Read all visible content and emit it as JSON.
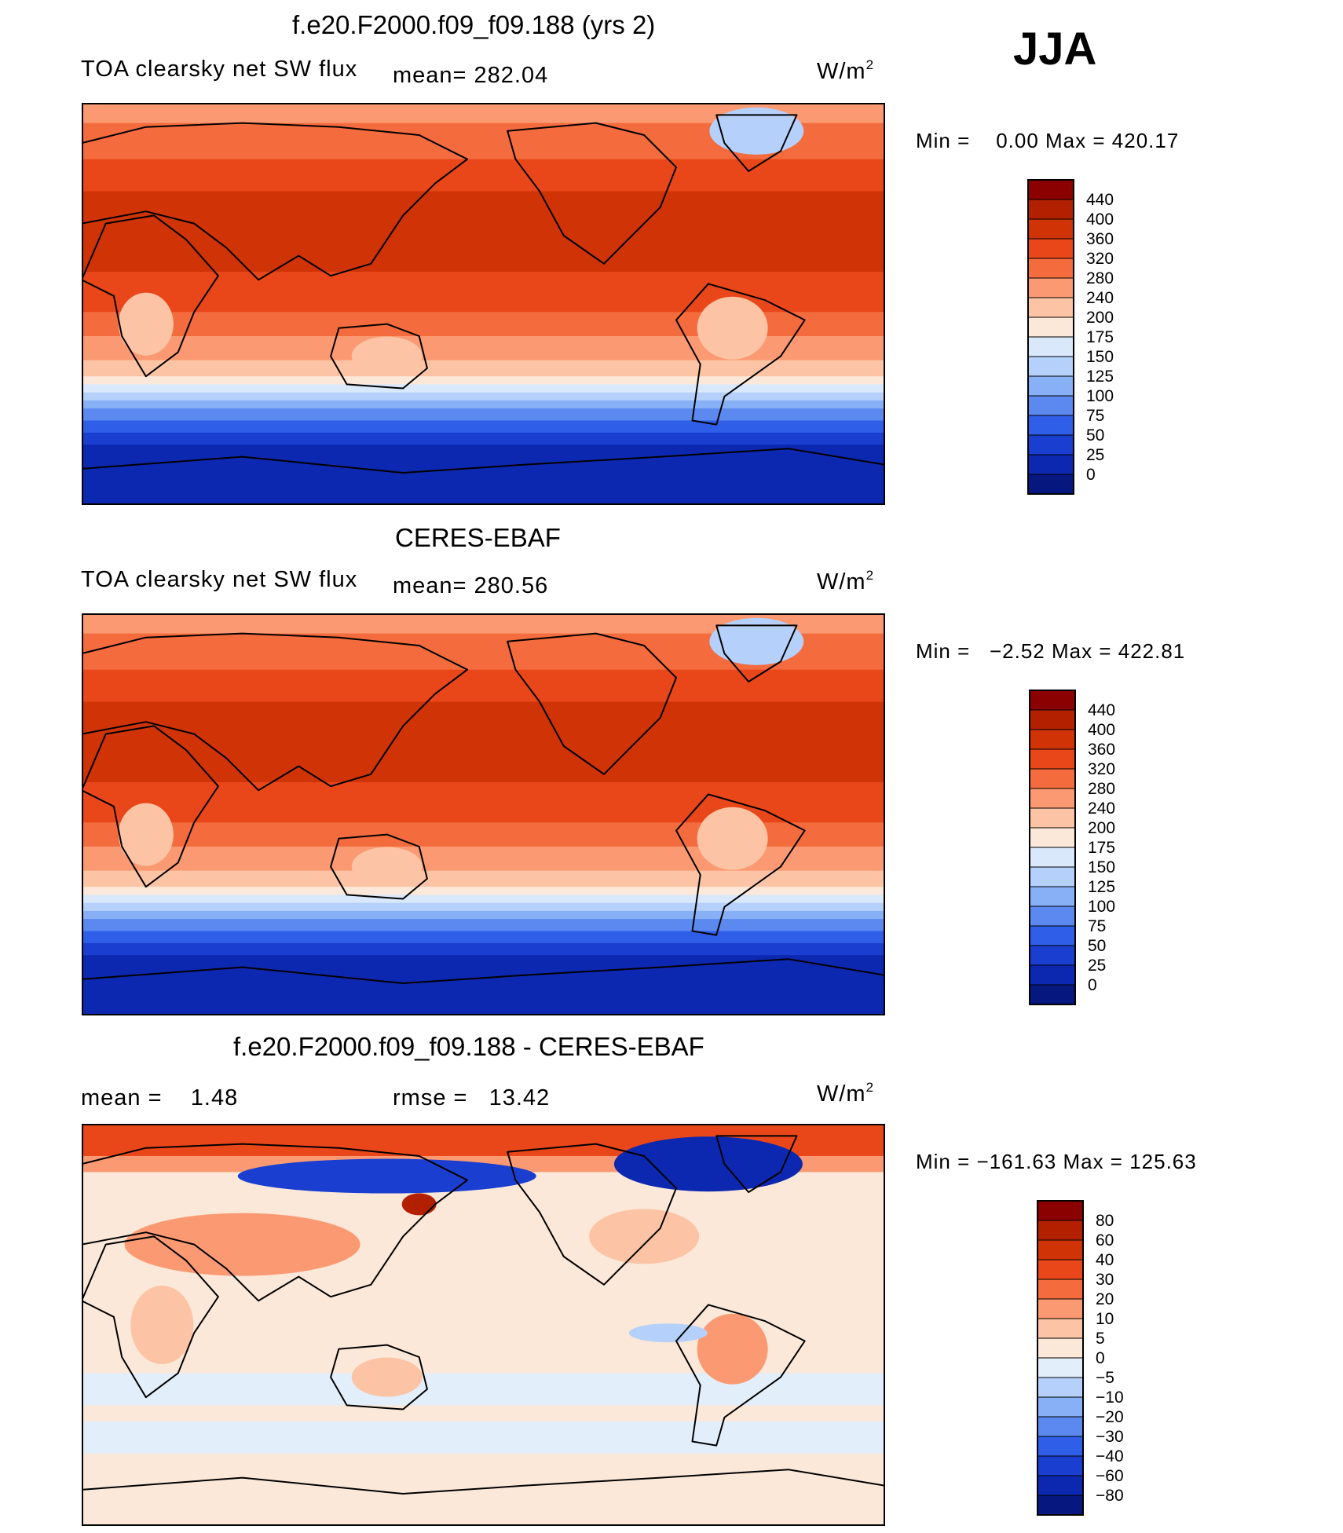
{
  "season": "JJA",
  "panels": [
    {
      "title": "f.e20.F2000.f09_f09.188 (yrs 2)",
      "left_label": "TOA clearsky net SW flux",
      "mean_text": "mean= 282.04",
      "unit": "W/m",
      "unit_exp": "2",
      "minmax": "Min =    0.00 Max = 420.17",
      "map_kind": "abs",
      "colorbar": {
        "levels": [
          "440",
          "400",
          "360",
          "320",
          "280",
          "240",
          "200",
          "175",
          "150",
          "125",
          "100",
          "75",
          "50",
          "25",
          "0"
        ],
        "colors": [
          "#8b0000",
          "#b22000",
          "#cf3306",
          "#e9471a",
          "#f46b3d",
          "#fb9a72",
          "#fcc4a4",
          "#fbe8d9",
          "#d9e8fb",
          "#b5d0fb",
          "#88b0f7",
          "#5b89f0",
          "#2f5fe8",
          "#1a3ed0",
          "#0c28b0",
          "#061880"
        ]
      }
    },
    {
      "title": "CERES-EBAF",
      "left_label": "TOA clearsky net SW flux",
      "mean_text": "mean= 280.56",
      "unit": "W/m",
      "unit_exp": "2",
      "minmax": "Min =   −2.52 Max = 422.81",
      "map_kind": "abs",
      "colorbar": {
        "levels": [
          "440",
          "400",
          "360",
          "320",
          "280",
          "240",
          "200",
          "175",
          "150",
          "125",
          "100",
          "75",
          "50",
          "25",
          "0"
        ],
        "colors": [
          "#8b0000",
          "#b22000",
          "#cf3306",
          "#e9471a",
          "#f46b3d",
          "#fb9a72",
          "#fcc4a4",
          "#fbe8d9",
          "#d9e8fb",
          "#b5d0fb",
          "#88b0f7",
          "#5b89f0",
          "#2f5fe8",
          "#1a3ed0",
          "#0c28b0",
          "#061880"
        ]
      }
    },
    {
      "title": "f.e20.F2000.f09_f09.188 - CERES-EBAF",
      "mean_text": "mean =    1.48",
      "rmse_text": "rmse =   13.42",
      "unit": "W/m",
      "unit_exp": "2",
      "minmax": "Min = −161.63 Max = 125.63",
      "map_kind": "diff",
      "colorbar": {
        "levels": [
          "80",
          "60",
          "40",
          "30",
          "20",
          "10",
          "5",
          "0",
          "−5",
          "−10",
          "−20",
          "−30",
          "−40",
          "−60",
          "−80"
        ],
        "colors": [
          "#8b0000",
          "#b22000",
          "#cf3306",
          "#e9471a",
          "#f46b3d",
          "#fb9a72",
          "#fcc4a4",
          "#fbe8d9",
          "#e3eefb",
          "#b5d0fb",
          "#88b0f7",
          "#5b89f0",
          "#2f5fe8",
          "#1a3ed0",
          "#0c28b0",
          "#061880"
        ]
      }
    }
  ]
}
